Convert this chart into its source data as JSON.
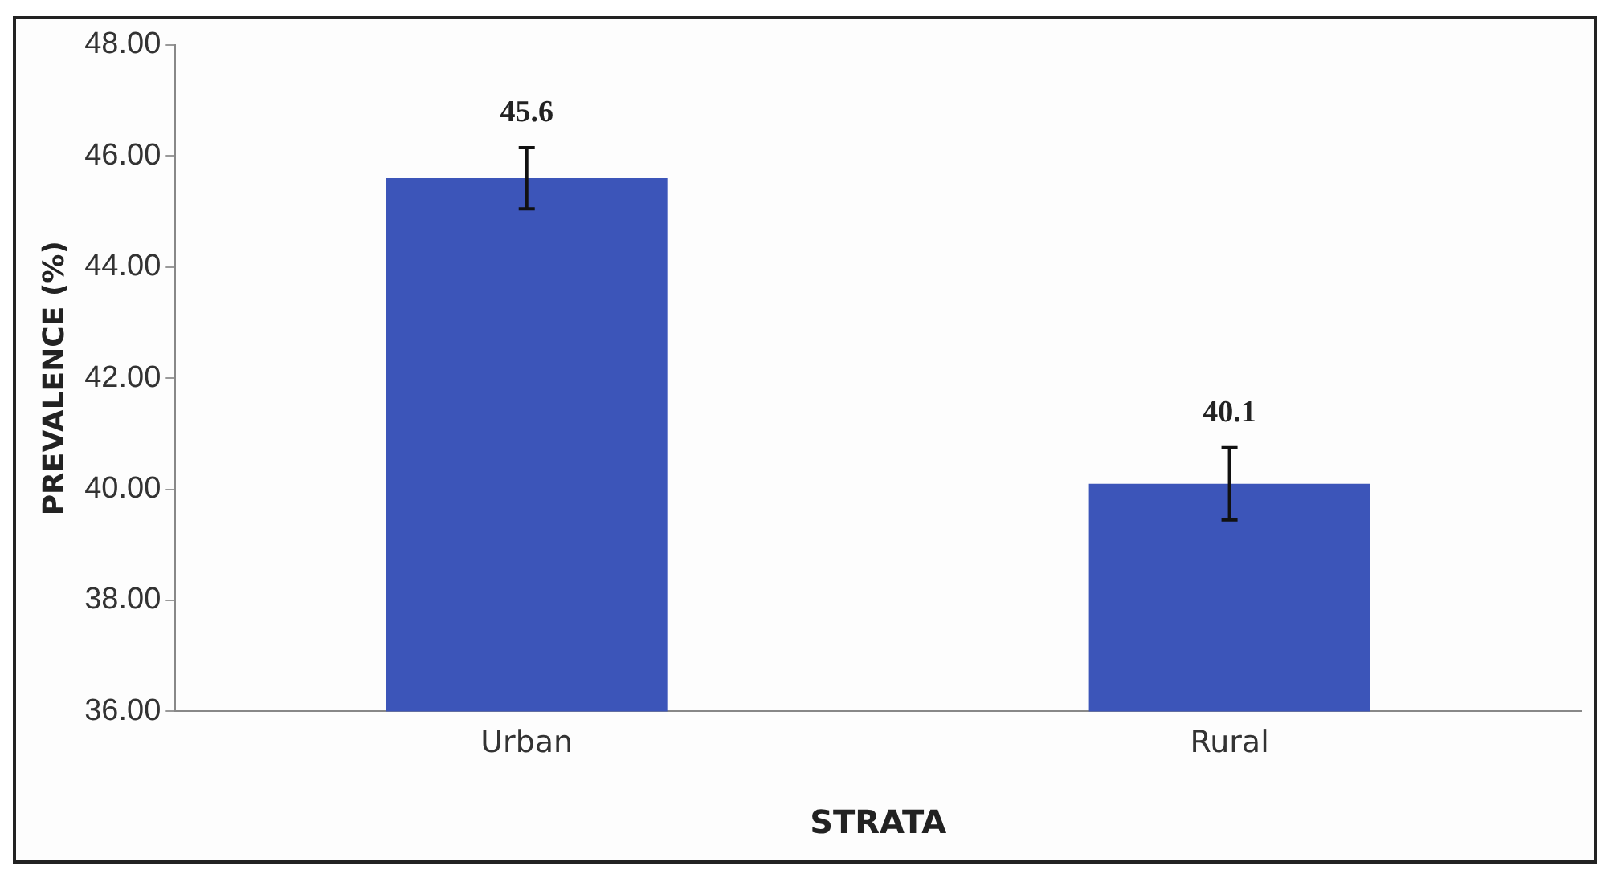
{
  "chart_data": {
    "type": "bar",
    "xlabel": "STRATA",
    "ylabel": "PREVALENCE (%)",
    "categories": [
      "Urban",
      "Rural"
    ],
    "values": [
      45.6,
      40.1
    ],
    "color": "#3c55b9",
    "errors": [
      0.55,
      0.65
    ],
    "data_labels": true,
    "ylim": [
      36,
      48
    ],
    "yticks": [
      {
        "value": 36,
        "label": "36.00"
      },
      {
        "value": 38,
        "label": "38.00"
      },
      {
        "value": 40,
        "label": "40.00"
      },
      {
        "value": 42,
        "label": "42.00"
      },
      {
        "value": 44,
        "label": "44.00"
      },
      {
        "value": 46,
        "label": "46.00"
      },
      {
        "value": 48,
        "label": "48.00"
      }
    ],
    "grid": false,
    "legend": false
  }
}
